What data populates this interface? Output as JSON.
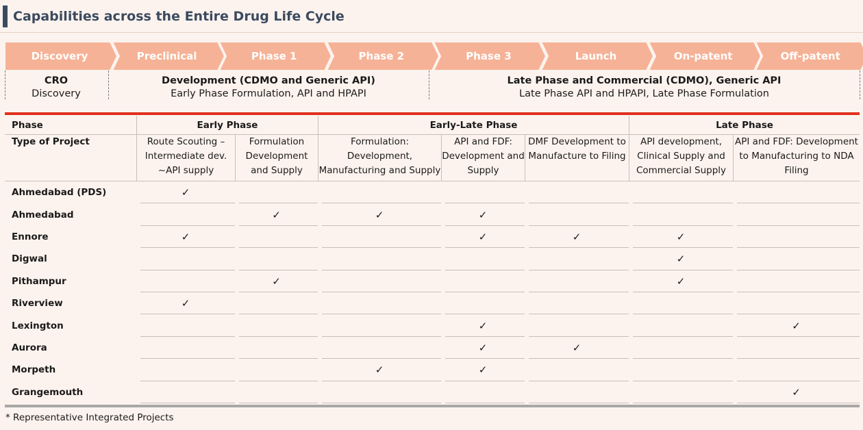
{
  "title": "Capabilities across the Entire Drug Life Cycle",
  "stages": [
    "Discovery",
    "Preclinical",
    "Phase 1",
    "Phase 2",
    "Phase 3",
    "Launch",
    "On-patent",
    "Off-patent"
  ],
  "segments": [
    {
      "line1": "CRO",
      "line2": "Discovery"
    },
    {
      "line1": "Development (CDMO and Generic API)",
      "line2": "Early Phase Formulation, API and HPAPI"
    },
    {
      "line1": "Late Phase and Commercial (CDMO), Generic API",
      "line2": "Late Phase API and HPAPI, Late Phase Formulation"
    }
  ],
  "table": {
    "phase_label": "Phase",
    "phases": [
      "Early Phase",
      "Early-Late Phase",
      "Late Phase"
    ],
    "type_label": "Type of Project",
    "types": [
      "Route Scouting – Intermediate dev. ~API supply",
      "Formulation Development and Supply",
      "Formulation: Development, Manufacturing and Supply",
      "API and FDF: Development and Supply",
      "DMF Development to Manufacture to Filing",
      "API development, Clinical Supply and Commercial Supply",
      "API and FDF: Development to Manufacturing to NDA Filing"
    ],
    "check_mark": "✓",
    "rows": [
      {
        "site": "Ahmedabad (PDS)",
        "checks": [
          1,
          0,
          0,
          0,
          0,
          0,
          0
        ]
      },
      {
        "site": "Ahmedabad",
        "checks": [
          0,
          1,
          1,
          1,
          0,
          0,
          0
        ]
      },
      {
        "site": "Ennore",
        "checks": [
          1,
          0,
          0,
          1,
          1,
          1,
          0
        ]
      },
      {
        "site": "Digwal",
        "checks": [
          0,
          0,
          0,
          0,
          0,
          1,
          0
        ]
      },
      {
        "site": "Pithampur",
        "checks": [
          0,
          1,
          0,
          0,
          0,
          1,
          0
        ]
      },
      {
        "site": "Riverview",
        "checks": [
          1,
          0,
          0,
          0,
          0,
          0,
          0
        ]
      },
      {
        "site": "Lexington",
        "checks": [
          0,
          0,
          0,
          1,
          0,
          0,
          1
        ]
      },
      {
        "site": "Aurora",
        "checks": [
          0,
          0,
          0,
          1,
          1,
          0,
          0
        ]
      },
      {
        "site": "Morpeth",
        "checks": [
          0,
          0,
          1,
          1,
          0,
          0,
          0
        ]
      },
      {
        "site": "Grangemouth",
        "checks": [
          0,
          0,
          0,
          0,
          0,
          0,
          1
        ]
      }
    ]
  },
  "footnote": "* Representative Integrated Projects",
  "colors": {
    "chevron": "#f6b296",
    "title": "#3b4a5f",
    "rule": "#e0301e"
  }
}
